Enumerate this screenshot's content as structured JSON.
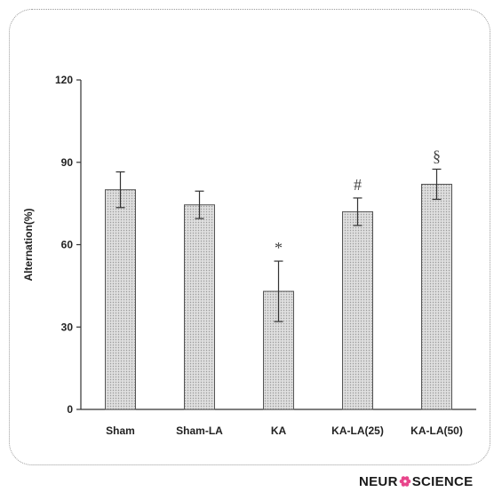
{
  "chart_data": {
    "type": "bar",
    "title": "",
    "xlabel": "",
    "ylabel": "Alternation(%)",
    "ylim": [
      0,
      120
    ],
    "yticks": [
      0,
      30,
      60,
      90,
      120
    ],
    "categories": [
      "Sham",
      "Sham-LA",
      "KA",
      "KA-LA(25)",
      "KA-LA(50)"
    ],
    "values": [
      80,
      74.5,
      43,
      72,
      82
    ],
    "errors": [
      6.5,
      5,
      11,
      5,
      5.5
    ],
    "annotations": [
      "",
      "",
      "*",
      "#",
      "§"
    ],
    "grid": false,
    "bar_fill": "#d4d4d4",
    "bar_stroke": "#555555"
  },
  "branding": {
    "logo_left": "NEUR",
    "logo_right": "SCIENCE",
    "logo_icon": "flower-icon",
    "logo_accent": "#e8458b"
  }
}
